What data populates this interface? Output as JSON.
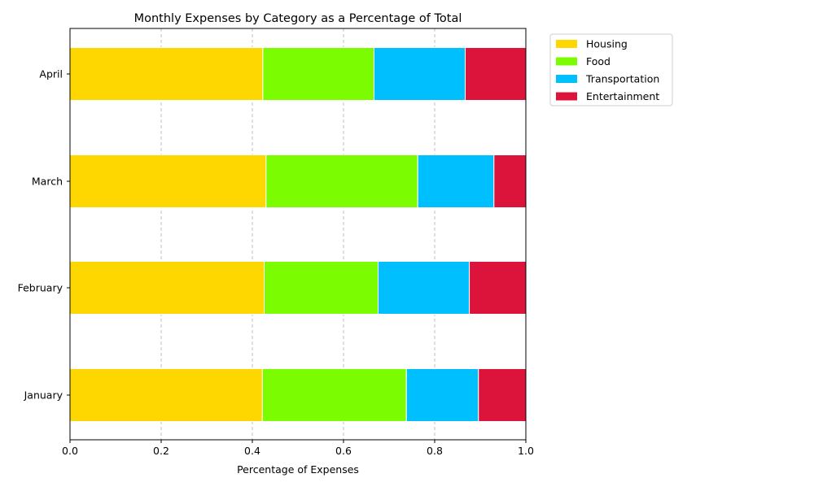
{
  "chart_data": {
    "type": "bar",
    "orientation": "horizontal",
    "stacked": true,
    "title": "Monthly Expenses by Category as a Percentage of Total",
    "xlabel": "Percentage of Expenses",
    "ylabel": "",
    "xlim": [
      0,
      1.0
    ],
    "x_ticks": [
      "0.0",
      "0.2",
      "0.4",
      "0.6",
      "0.8",
      "1.0"
    ],
    "x_tick_values": [
      0,
      0.2,
      0.4,
      0.6,
      0.8,
      1.0
    ],
    "categories": [
      "January",
      "February",
      "March",
      "April"
    ],
    "series": [
      {
        "name": "Housing",
        "color": "#FFD700",
        "values": [
          0.422,
          0.426,
          0.43,
          0.423
        ]
      },
      {
        "name": "Food",
        "color": "#7CFC00",
        "values": [
          0.316,
          0.25,
          0.333,
          0.244
        ]
      },
      {
        "name": "Transportation",
        "color": "#00BFFF",
        "values": [
          0.158,
          0.2,
          0.167,
          0.2
        ]
      },
      {
        "name": "Entertainment",
        "color": "#DC143C",
        "values": [
          0.104,
          0.124,
          0.07,
          0.133
        ]
      }
    ],
    "grid": "x-dashed",
    "legend_position": "outside-top-right"
  }
}
